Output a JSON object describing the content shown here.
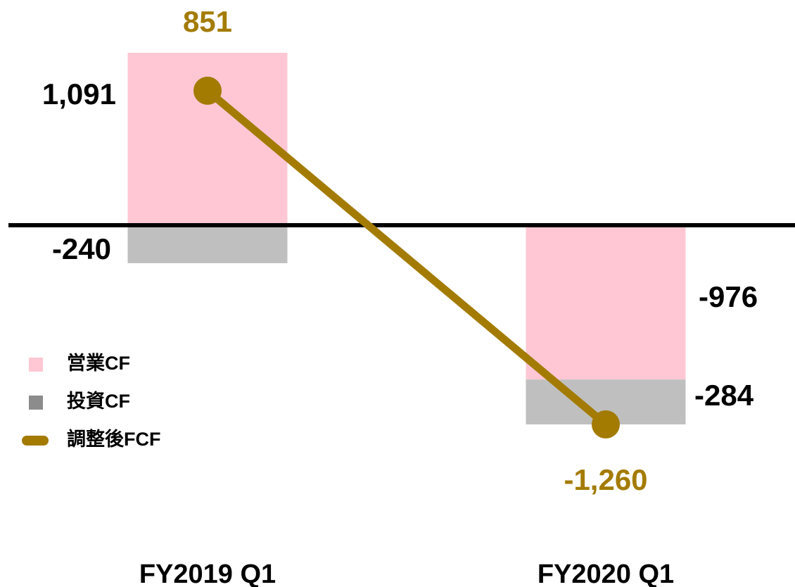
{
  "chart_data": {
    "type": "bar",
    "categories": [
      "FY2019 Q1",
      "FY2020 Q1"
    ],
    "series": [
      {
        "name": "営業CF",
        "color": "#ffc7d4",
        "type": "bar",
        "values": [
          1091,
          -976
        ],
        "value_labels": [
          "1,091",
          "-976"
        ]
      },
      {
        "name": "投資CF",
        "color": "#bfbfbf",
        "type": "bar",
        "values": [
          -240,
          -284
        ],
        "value_labels": [
          "-240",
          "-284"
        ]
      },
      {
        "name": "調整後FCF",
        "color": "#a37b00",
        "type": "line",
        "values": [
          851,
          -1260
        ],
        "value_labels": [
          "851",
          "-1,260"
        ]
      }
    ]
  }
}
